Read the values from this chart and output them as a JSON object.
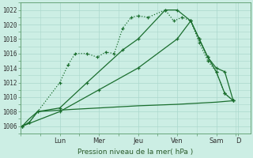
{
  "bg_color": "#cceee4",
  "grid_color": "#aad8cc",
  "line_color": "#1a6e2e",
  "title": "Pression niveau de la mer( hPa )",
  "ylim": [
    1005.0,
    1023.0
  ],
  "yticks": [
    1006,
    1008,
    1010,
    1012,
    1014,
    1016,
    1018,
    1020,
    1022
  ],
  "xlim": [
    0,
    13.5
  ],
  "day_labels": [
    "Lun",
    "Mer",
    "Jeu",
    "Ven",
    "Sam",
    "D"
  ],
  "day_positions": [
    2.3,
    4.6,
    6.9,
    9.2,
    11.5,
    12.8
  ],
  "series": [
    {
      "x": [
        0.1,
        0.5,
        1.0,
        2.3,
        2.8,
        3.2,
        3.9,
        4.5,
        5.0,
        5.5,
        6.0,
        6.5,
        6.9,
        7.5,
        8.5,
        9.0,
        9.5,
        10.0,
        10.5,
        11.0,
        11.5,
        12.0,
        12.5
      ],
      "y": [
        1006,
        1006.5,
        1008,
        1012,
        1014.5,
        1016,
        1016,
        1015.5,
        1016.2,
        1016,
        1019.5,
        1021,
        1021.2,
        1021,
        1022,
        1020.5,
        1021,
        1020.5,
        1017.5,
        1015,
        1013.5,
        1010.5,
        1009.5
      ],
      "style": ":",
      "marker": "+",
      "lw": 0.9
    },
    {
      "x": [
        0.1,
        0.5,
        1.0,
        2.3,
        3.9,
        6.0,
        6.9,
        8.5,
        9.2,
        10.0,
        10.5,
        11.0,
        11.5,
        12.0,
        12.5
      ],
      "y": [
        1006,
        1006.5,
        1008,
        1008.5,
        1012,
        1016.5,
        1018,
        1022,
        1022,
        1020.5,
        1018,
        1015.5,
        1014,
        1013.5,
        1009.5
      ],
      "style": "-",
      "marker": "+",
      "lw": 0.9
    },
    {
      "x": [
        0.1,
        2.3,
        4.6,
        6.9,
        9.2,
        10.0,
        10.5,
        11.0,
        11.5,
        12.0,
        12.5
      ],
      "y": [
        1006,
        1008,
        1011,
        1014,
        1018,
        1020.5,
        1018,
        1015.5,
        1013.5,
        1010.5,
        1009.5
      ],
      "style": "-",
      "marker": "+",
      "lw": 0.9
    },
    {
      "x": [
        0.1,
        0.5,
        1.0,
        2.3,
        3.0,
        4.6,
        6.9,
        9.2,
        11.5,
        12.5
      ],
      "y": [
        1006,
        1007,
        1008,
        1008.2,
        1008.3,
        1008.5,
        1008.8,
        1009.0,
        1009.3,
        1009.5
      ],
      "style": "-",
      "marker": null,
      "lw": 0.9
    }
  ]
}
